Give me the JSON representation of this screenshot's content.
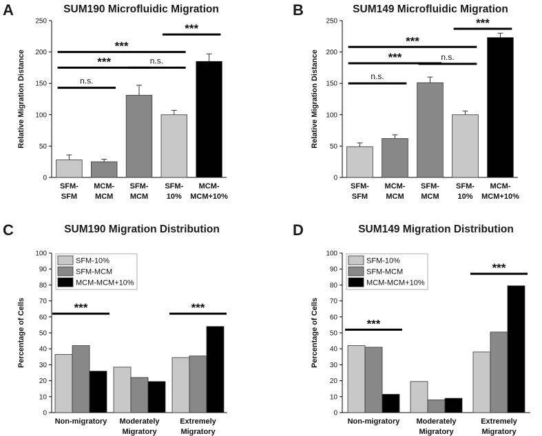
{
  "chart_data": [
    {
      "panel": "A",
      "type": "bar",
      "title": "SUM190 Microfluidic Migration",
      "ylabel": "Relative Migration Distance",
      "ylim": [
        0,
        250
      ],
      "yticks": [
        0,
        50,
        100,
        150,
        200,
        250
      ],
      "categories": [
        [
          "SFM-",
          "SFM"
        ],
        [
          "MCM-",
          "MCM"
        ],
        [
          "SFM-",
          "MCM"
        ],
        [
          "SFM-",
          "10%"
        ],
        [
          "MCM-",
          "MCM+10%"
        ]
      ],
      "values": [
        28,
        25,
        131,
        100,
        185
      ],
      "errors": [
        8,
        4,
        16,
        7,
        12
      ],
      "colors": [
        "#c8c8c8",
        "#888888",
        "#888888",
        "#c8c8c8",
        "#000000"
      ],
      "brackets": [
        {
          "from": 0,
          "to": 1,
          "y": 143,
          "label": "n.s."
        },
        {
          "from": 0,
          "to": 2,
          "y": 175,
          "label": "***"
        },
        {
          "from": 0,
          "to": 3,
          "y": 200,
          "label": "***"
        },
        {
          "from": 2,
          "to": 3,
          "y": 175,
          "label": "n.s."
        },
        {
          "from": 3,
          "to": 4,
          "y": 228,
          "label": "***"
        }
      ]
    },
    {
      "panel": "B",
      "type": "bar",
      "title": "SUM149 Microfluidic Migration",
      "ylabel": "Relative Migration Distance",
      "ylim": [
        0,
        250
      ],
      "yticks": [
        0,
        50,
        100,
        150,
        200,
        250
      ],
      "categories": [
        [
          "SFM-",
          "SFM"
        ],
        [
          "MCM-",
          "MCM"
        ],
        [
          "SFM-",
          "MCM"
        ],
        [
          "SFM-",
          "10%"
        ],
        [
          "MCM-",
          "MCM+10%"
        ]
      ],
      "values": [
        49,
        62,
        151,
        100,
        223
      ],
      "errors": [
        6,
        6,
        9,
        6,
        7
      ],
      "colors": [
        "#c8c8c8",
        "#888888",
        "#888888",
        "#c8c8c8",
        "#000000"
      ],
      "brackets": [
        {
          "from": 0,
          "to": 1,
          "y": 150,
          "label": "n.s."
        },
        {
          "from": 0,
          "to": 2,
          "y": 182,
          "label": "***"
        },
        {
          "from": 0,
          "to": 3,
          "y": 208,
          "label": "***"
        },
        {
          "from": 2,
          "to": 3,
          "y": 181,
          "label": "n.s."
        },
        {
          "from": 3,
          "to": 4,
          "y": 237,
          "label": "***"
        }
      ]
    },
    {
      "panel": "C",
      "type": "bar",
      "title": "SUM190 Migration Distribution",
      "ylabel": "Percentage of Cells",
      "ylim": [
        0,
        100
      ],
      "yticks": [
        0,
        10,
        20,
        30,
        40,
        50,
        60,
        70,
        80,
        90,
        100
      ],
      "categories": [
        [
          "Non-migratory"
        ],
        [
          "Moderately",
          "Migratory"
        ],
        [
          "Extremely",
          "Migratory"
        ]
      ],
      "series": [
        {
          "name": "SFM-10%",
          "color": "#c8c8c8",
          "values": [
            36.5,
            28.5,
            34.5
          ]
        },
        {
          "name": "SFM-MCM",
          "color": "#888888",
          "values": [
            42,
            22,
            35.5
          ]
        },
        {
          "name": "MCM-MCM+10%",
          "color": "#000000",
          "values": [
            26,
            19.5,
            54
          ]
        }
      ],
      "legend_position": "top-left",
      "annotations": [
        {
          "group": 0,
          "y": 62,
          "label": "***"
        },
        {
          "group": 2,
          "y": 62,
          "label": "***"
        }
      ]
    },
    {
      "panel": "D",
      "type": "bar",
      "title": "SUM149 Migration Distribution",
      "ylabel": "Percentage of Cells",
      "ylim": [
        0,
        100
      ],
      "yticks": [
        0,
        10,
        20,
        30,
        40,
        50,
        60,
        70,
        80,
        90,
        100
      ],
      "categories": [
        [
          "Non-migratory"
        ],
        [
          "Moderately",
          "Migratory"
        ],
        [
          "Extremely",
          "Migratory"
        ]
      ],
      "series": [
        {
          "name": "SFM-10%",
          "color": "#c8c8c8",
          "values": [
            42,
            19.5,
            38
          ]
        },
        {
          "name": "SFM-MCM",
          "color": "#888888",
          "values": [
            41,
            8,
            50.5
          ]
        },
        {
          "name": "MCM-MCM+10%",
          "color": "#000000",
          "values": [
            11.5,
            9,
            79.5
          ]
        }
      ],
      "legend_position": "top-left",
      "annotations": [
        {
          "group": 0,
          "y": 52,
          "label": "***"
        },
        {
          "group": 2,
          "y": 87,
          "label": "***"
        }
      ]
    }
  ]
}
